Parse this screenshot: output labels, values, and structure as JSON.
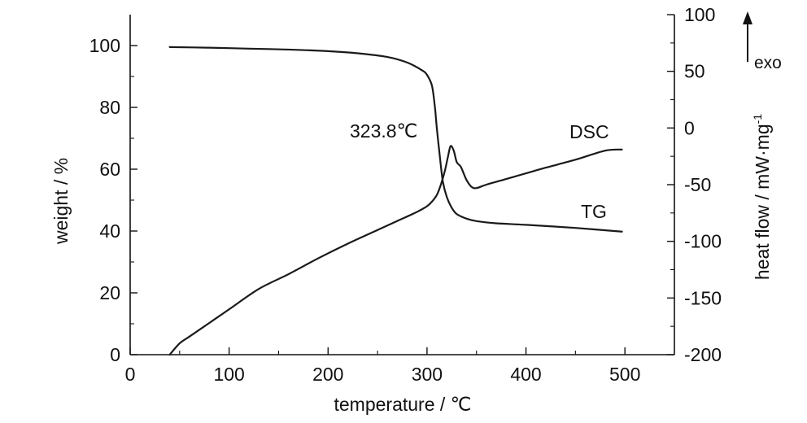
{
  "chart_data": {
    "type": "line",
    "xlabel": "temperature / ℃",
    "ylabel_left": "weight / %",
    "ylabel_right": "heat flow / mW·mg",
    "ylabel_right_superscript": "-1",
    "xlim": [
      0,
      550
    ],
    "ylim_left": [
      0,
      110
    ],
    "ylim_right": [
      -200,
      100
    ],
    "x_ticks": [
      "0",
      "100",
      "200",
      "300",
      "400",
      "500"
    ],
    "y_left_ticks": [
      "0",
      "20",
      "40",
      "60",
      "80",
      "100"
    ],
    "y_right_ticks": [
      "-200",
      "-150",
      "-100",
      "-50",
      "0",
      "50",
      "100"
    ],
    "annotations": [
      {
        "text": "323.8℃",
        "x": 323.8
      }
    ],
    "exo_label": "exo",
    "grid": false,
    "series": [
      {
        "name": "TG",
        "axis": "left",
        "x": [
          40,
          80,
          120,
          160,
          200,
          230,
          260,
          280,
          295,
          300,
          305,
          308,
          310,
          313,
          316,
          320,
          325,
          330,
          340,
          350,
          370,
          400,
          450,
          497
        ],
        "y": [
          99.5,
          99.3,
          99.0,
          98.7,
          98.2,
          97.5,
          96.3,
          94.5,
          92.0,
          90.5,
          87.0,
          80.0,
          73.0,
          64.0,
          56.0,
          51.0,
          47.5,
          45.5,
          44.0,
          43.2,
          42.5,
          42.0,
          41.0,
          39.8
        ]
      },
      {
        "name": "DSC",
        "axis": "right",
        "x": [
          40,
          50,
          60,
          80,
          100,
          130,
          160,
          190,
          220,
          250,
          270,
          290,
          300,
          305,
          310,
          314,
          318,
          321,
          323.8,
          327,
          330,
          334,
          337,
          340,
          345,
          350,
          360,
          380,
          400,
          420,
          450,
          480,
          497
        ],
        "y": [
          -200,
          -190,
          -184,
          -172,
          -160,
          -142,
          -129,
          -115,
          -102,
          -90,
          -82,
          -74,
          -69,
          -65,
          -59,
          -50,
          -38,
          -26,
          -16,
          -20,
          -30,
          -34,
          -40,
          -46,
          -52,
          -53,
          -50,
          -45,
          -40,
          -35,
          -28,
          -20,
          -19
        ]
      }
    ]
  }
}
